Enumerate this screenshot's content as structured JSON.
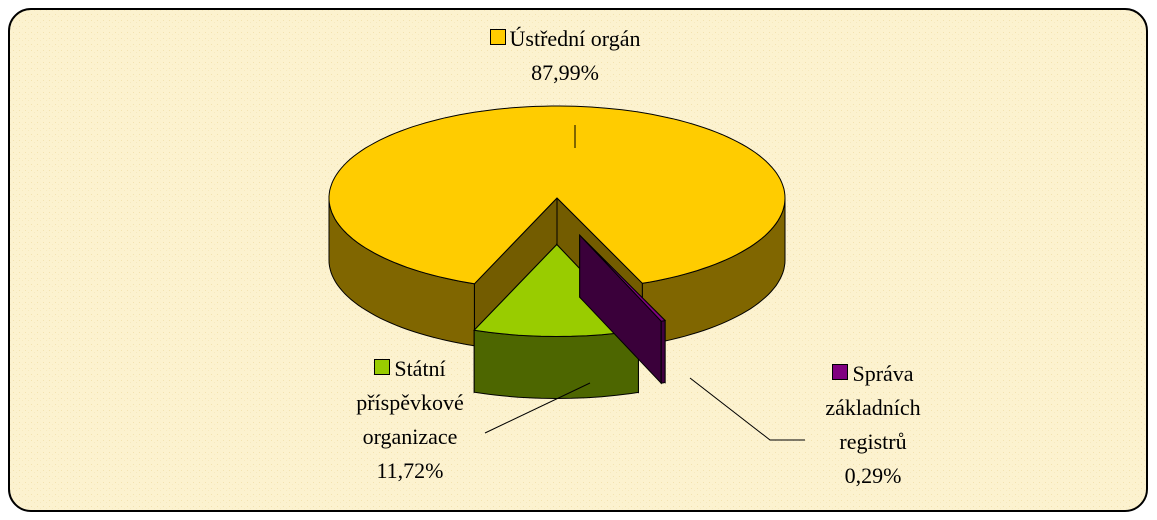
{
  "chart_data": {
    "type": "pie3d",
    "categories": [
      "Ústřední orgán",
      "Státní příspěvkové organizace",
      "Správa základních registrů"
    ],
    "values": [
      87.99,
      11.72,
      0.29
    ],
    "value_labels": [
      "87,99%",
      "11,72%",
      "0,29%"
    ],
    "colors": [
      "#FFCC00",
      "#99CC00",
      "#800080"
    ]
  }
}
